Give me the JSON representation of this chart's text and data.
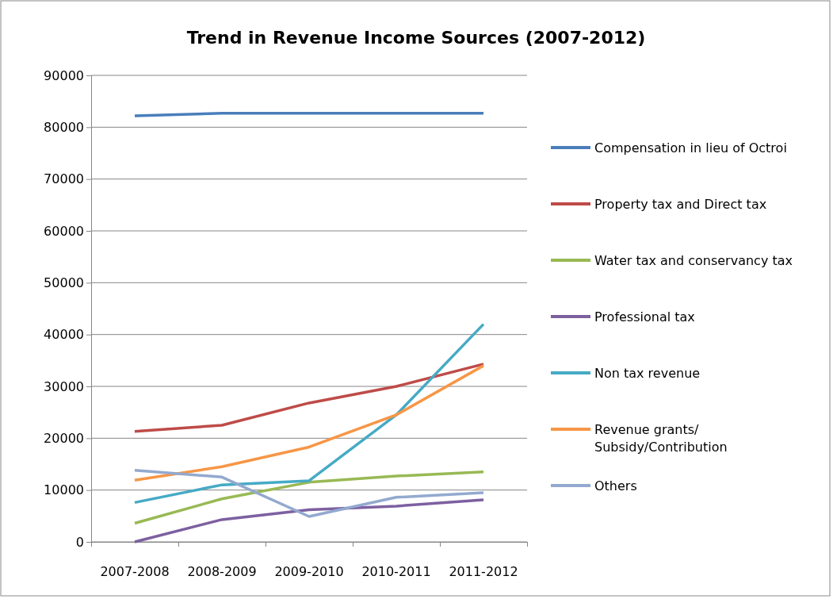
{
  "chart_data": {
    "type": "line",
    "title": "Trend in Revenue Income Sources (2007-2012)",
    "categories": [
      "2007-2008",
      "2008-2009",
      "2009-2010",
      "2010-2011",
      "2011-2012"
    ],
    "series": [
      {
        "name": "Compensation in lieu of Octroi",
        "color": "#4a7ebb",
        "values": [
          82200,
          82700,
          82700,
          82700,
          82700
        ]
      },
      {
        "name": "Property tax and Direct tax",
        "color": "#be4b48",
        "values": [
          21300,
          22500,
          26800,
          30000,
          34300
        ]
      },
      {
        "name": "Water tax and conservancy tax",
        "color": "#98b954",
        "values": [
          3600,
          8300,
          11500,
          12700,
          13500
        ]
      },
      {
        "name": "Professional tax",
        "color": "#7d60a0",
        "values": [
          0,
          4300,
          6200,
          6900,
          8100
        ]
      },
      {
        "name": "Non tax revenue",
        "color": "#46aac5",
        "values": [
          7600,
          11000,
          11800,
          24500,
          42000
        ]
      },
      {
        "name": "Revenue grants/ Subsidy/Contribution",
        "color": "#f79646",
        "values": [
          11900,
          14500,
          18300,
          24500,
          34000
        ]
      },
      {
        "name": "Others",
        "color": "#93a9cf",
        "values": [
          13800,
          12500,
          4900,
          8600,
          9500
        ]
      }
    ],
    "ylim": [
      0,
      90000
    ],
    "yticks": [
      0,
      10000,
      20000,
      30000,
      40000,
      50000,
      60000,
      70000,
      80000,
      90000
    ],
    "grid": "y",
    "legend": "right",
    "marker": "none",
    "line_style": "solid"
  }
}
